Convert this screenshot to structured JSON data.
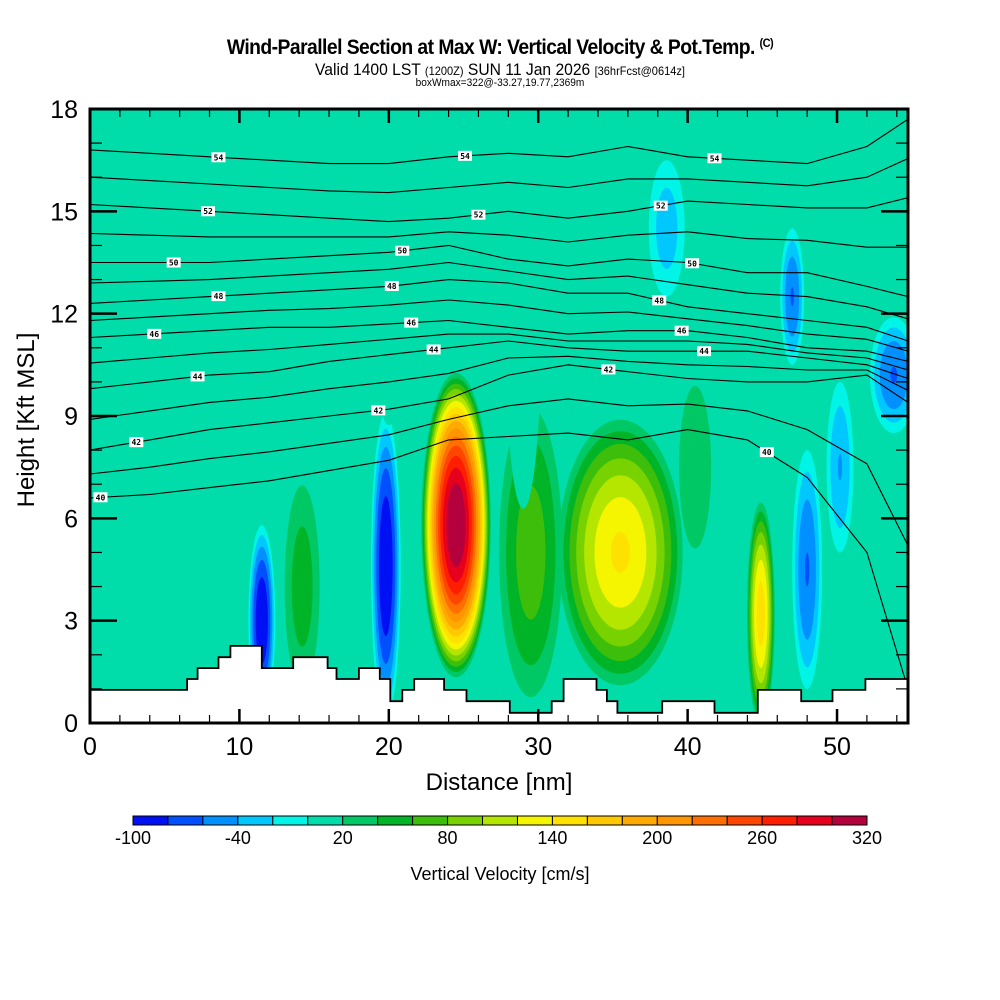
{
  "header": {
    "title": "Wind-Parallel Section at Max W: Vertical Velocity & Pot.Temp.",
    "copyright": "(C)",
    "valid_prefix": "Valid 1400 LST",
    "valid_utc": "(1200Z)",
    "valid_date": "SUN 11 Jan 2026",
    "forecast": "[36hrFcst@0614z]",
    "boxwmax": "boxWmax=322@-33.27,19.77,2369m"
  },
  "chart_data": {
    "type": "heatmap",
    "title": "Wind-Parallel Section at Max W: Vertical Velocity & Pot.Temp.",
    "xlabel": "Distance [nm]",
    "ylabel": "Height [Kft MSL]",
    "xlim": [
      0,
      54.75
    ],
    "ylim": [
      0,
      18
    ],
    "x_ticks": [
      "0",
      "10",
      "20",
      "30",
      "40",
      "50"
    ],
    "x_tick_values": [
      0,
      10,
      20,
      30,
      40,
      50
    ],
    "x_minor_step": 2,
    "y_ticks": [
      "0",
      "3",
      "6",
      "9",
      "12",
      "15",
      "18"
    ],
    "y_tick_values": [
      0,
      3,
      6,
      9,
      12,
      15,
      18
    ],
    "y_minor_step": 1,
    "colorbar": {
      "title": "Vertical Velocity [cm/s]",
      "levels": [
        -100,
        -80,
        -60,
        -40,
        -20,
        0,
        20,
        40,
        60,
        80,
        100,
        120,
        140,
        160,
        180,
        200,
        220,
        240,
        260,
        280,
        300,
        320
      ],
      "labels": [
        "-100",
        "-40",
        "20",
        "80",
        "140",
        "200",
        "260",
        "320"
      ],
      "label_values": [
        -100,
        -40,
        20,
        80,
        140,
        200,
        260,
        320
      ],
      "colors": [
        "#0010f5",
        "#0050ff",
        "#0090ff",
        "#00c8ff",
        "#00f5e6",
        "#00dcaa",
        "#00c864",
        "#00b428",
        "#3cbe0a",
        "#78d200",
        "#b4e600",
        "#f5f500",
        "#ffe100",
        "#ffc800",
        "#ffaa00",
        "#ff9600",
        "#ff6e00",
        "#ff4600",
        "#ff1e00",
        "#e6001e",
        "#b4003c"
      ]
    },
    "background_value": 0,
    "w_features": [
      {
        "x": 24.5,
        "y": 5.8,
        "rx": 2.4,
        "ry": 4.6,
        "peak": 322
      },
      {
        "x": 35.5,
        "y": 5.0,
        "rx": 4.5,
        "ry": 4.2,
        "peak": 140
      },
      {
        "x": 29.5,
        "y": 5.0,
        "rx": 2.5,
        "ry": 5.0,
        "peak": 70
      },
      {
        "x": 44.9,
        "y": 3.2,
        "rx": 1.0,
        "ry": 3.5,
        "peak": 150
      },
      {
        "x": 14.2,
        "y": 4.0,
        "rx": 1.5,
        "ry": 3.8,
        "peak": 50
      },
      {
        "x": 11.5,
        "y": 3.0,
        "rx": 0.9,
        "ry": 2.8,
        "peak": -100
      },
      {
        "x": 19.8,
        "y": 4.6,
        "rx": 1.0,
        "ry": 4.5,
        "peak": -100
      },
      {
        "x": 48.0,
        "y": 4.5,
        "rx": 1.0,
        "ry": 3.5,
        "peak": -60
      },
      {
        "x": 50.2,
        "y": 7.5,
        "rx": 0.9,
        "ry": 2.5,
        "peak": -40
      },
      {
        "x": 53.8,
        "y": 10.2,
        "rx": 1.6,
        "ry": 1.7,
        "peak": -60
      },
      {
        "x": 47.0,
        "y": 12.5,
        "rx": 0.8,
        "ry": 2.0,
        "peak": -60
      },
      {
        "x": 38.6,
        "y": 14.5,
        "rx": 1.2,
        "ry": 2.0,
        "peak": -30
      },
      {
        "x": 5.0,
        "y": 8.8,
        "rx": 4.5,
        "ry": 1.0,
        "peak": 10
      },
      {
        "x": 20.0,
        "y": 13.5,
        "rx": 1.3,
        "ry": 5.0,
        "peak": 10
      },
      {
        "x": 29.0,
        "y": 12.0,
        "rx": 1.3,
        "ry": 6.0,
        "peak": 10
      },
      {
        "x": 40.5,
        "y": 7.5,
        "rx": 1.8,
        "ry": 4.0,
        "peak": 30
      },
      {
        "x": 52.5,
        "y": 16.0,
        "rx": 1.5,
        "ry": 2.5,
        "peak": 15
      }
    ],
    "isentropes": [
      {
        "value": 40,
        "label": "40",
        "heights": [
          6.6,
          6.7,
          6.9,
          7.1,
          7.4,
          7.7,
          8.3,
          8.4,
          8.5,
          8.3,
          8.6,
          8.3,
          7.2,
          5.0,
          1.0
        ]
      },
      {
        "value": 42,
        "label": "42",
        "heights": [
          8.0,
          8.3,
          8.6,
          8.8,
          9.0,
          9.2,
          9.5,
          10.2,
          10.5,
          10.3,
          10.1,
          10.0,
          10.0,
          10.2,
          9.4
        ]
      },
      {
        "value": 44,
        "label": "44",
        "heights": [
          9.8,
          10.0,
          10.2,
          10.3,
          10.6,
          10.8,
          11.0,
          11.2,
          11.0,
          10.9,
          10.9,
          10.9,
          10.7,
          10.5,
          10.1
        ]
      },
      {
        "value": 46,
        "label": "46",
        "heights": [
          11.3,
          11.4,
          11.5,
          11.6,
          11.6,
          11.7,
          11.8,
          11.6,
          11.4,
          11.5,
          11.5,
          11.3,
          11.0,
          10.9,
          10.6
        ]
      },
      {
        "value": 48,
        "label": "48",
        "heights": [
          12.3,
          12.4,
          12.5,
          12.6,
          12.7,
          12.8,
          13.0,
          12.9,
          12.6,
          12.6,
          12.2,
          12.0,
          11.8,
          11.6,
          11.2
        ]
      },
      {
        "value": 50,
        "label": "50",
        "heights": [
          13.5,
          13.5,
          13.5,
          13.6,
          13.7,
          13.8,
          14.0,
          13.6,
          13.4,
          13.6,
          13.5,
          13.2,
          13.2,
          12.8,
          12.5
        ]
      },
      {
        "value": 52,
        "label": "52",
        "heights": [
          15.2,
          15.1,
          15.0,
          14.9,
          14.8,
          14.7,
          14.8,
          15.0,
          14.8,
          15.0,
          15.3,
          15.2,
          15.1,
          15.1,
          15.4
        ]
      },
      {
        "value": 54,
        "label": "54",
        "heights": [
          16.8,
          16.7,
          16.6,
          16.5,
          16.4,
          16.4,
          16.6,
          16.7,
          16.6,
          16.9,
          16.6,
          16.5,
          16.4,
          16.9,
          17.7
        ]
      }
    ],
    "isentrope_x": [
      0,
      4,
      8,
      12,
      16,
      20,
      24,
      28,
      32,
      36,
      40,
      44,
      48,
      52,
      54.75
    ],
    "isentrope_labels": [
      {
        "label": "54",
        "x": 8.6,
        "line": 7
      },
      {
        "label": "54",
        "x": 25.1,
        "line": 7
      },
      {
        "label": "54",
        "x": 41.8,
        "line": 7
      },
      {
        "label": "52",
        "x": 7.9,
        "line": 6
      },
      {
        "label": "52",
        "x": 26.0,
        "line": 6
      },
      {
        "label": "52",
        "x": 38.2,
        "line": 6
      },
      {
        "label": "50",
        "x": 5.6,
        "line": 5
      },
      {
        "label": "50",
        "x": 20.9,
        "line": 5
      },
      {
        "label": "50",
        "x": 40.3,
        "line": 5
      },
      {
        "label": "48",
        "x": 8.6,
        "line": 4
      },
      {
        "label": "48",
        "x": 20.2,
        "line": 4
      },
      {
        "label": "48",
        "x": 38.1,
        "line": 4
      },
      {
        "label": "46",
        "x": 4.3,
        "line": 3
      },
      {
        "label": "46",
        "x": 21.5,
        "line": 3
      },
      {
        "label": "46",
        "x": 39.6,
        "line": 3
      },
      {
        "label": "44",
        "x": 7.2,
        "line": 2
      },
      {
        "label": "44",
        "x": 23.0,
        "line": 2
      },
      {
        "label": "44",
        "x": 41.1,
        "line": 2
      },
      {
        "label": "42",
        "x": 3.1,
        "line": 1
      },
      {
        "label": "42",
        "x": 19.3,
        "line": 1
      },
      {
        "label": "42",
        "x": 34.7,
        "line": 1
      },
      {
        "label": "40",
        "x": 0.7,
        "line": 0
      },
      {
        "label": "40",
        "x": 45.3,
        "line": 0
      }
    ],
    "terrain": [
      [
        0,
        0.97
      ],
      [
        6.5,
        1.29
      ],
      [
        7.2,
        1.61
      ],
      [
        8.6,
        1.93
      ],
      [
        9.4,
        2.26
      ],
      [
        11.5,
        1.61
      ],
      [
        13.6,
        1.93
      ],
      [
        15.9,
        1.61
      ],
      [
        16.5,
        1.29
      ],
      [
        18.0,
        1.61
      ],
      [
        19.4,
        1.29
      ],
      [
        20.1,
        0.64
      ],
      [
        20.9,
        0.97
      ],
      [
        21.7,
        1.29
      ],
      [
        23.7,
        0.97
      ],
      [
        25.2,
        0.64
      ],
      [
        28.1,
        0.3
      ],
      [
        30.9,
        0.64
      ],
      [
        31.7,
        1.29
      ],
      [
        33.9,
        0.97
      ],
      [
        34.6,
        0.64
      ],
      [
        35.3,
        0.3
      ],
      [
        38.3,
        0.64
      ],
      [
        41.8,
        0.3
      ],
      [
        44.7,
        0.97
      ],
      [
        47.6,
        0.64
      ],
      [
        49.7,
        0.97
      ],
      [
        51.9,
        1.29
      ],
      [
        54.75,
        1.29
      ]
    ]
  }
}
